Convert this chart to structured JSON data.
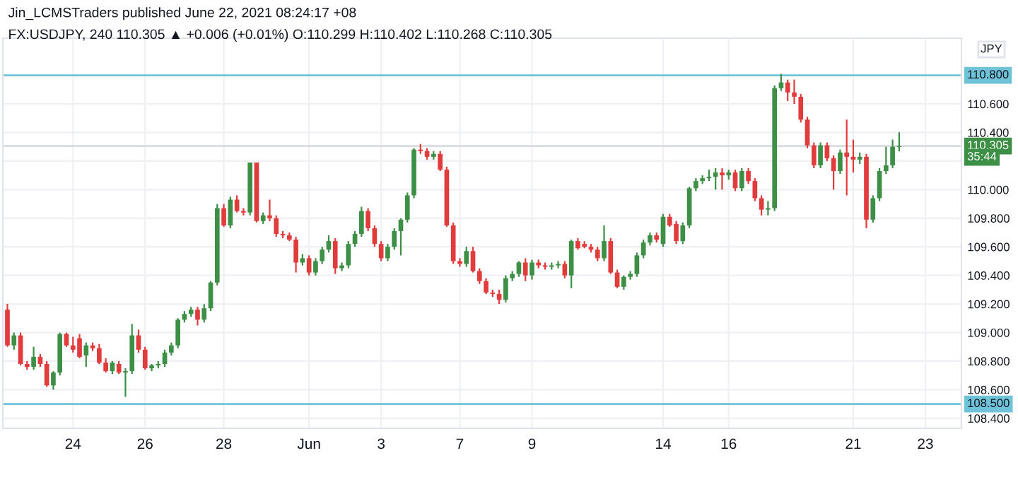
{
  "chart_data": {
    "type": "candlestick",
    "title": "Jin_LCMSTraders published June 22, 2021 08:24:17 +08",
    "subtitle": "FX:USDJPY, 240 110.305 ▲ +0.006 (+0.01%) O:110.299 H:110.402 L:110.268 C:110.305",
    "categories": [
      null,
      null,
      null,
      null,
      null,
      null,
      null,
      null,
      null,
      null,
      "24",
      null,
      null,
      null,
      null,
      null,
      null,
      null,
      null,
      null,
      null,
      "26",
      null,
      null,
      null,
      null,
      null,
      null,
      null,
      null,
      null,
      null,
      null,
      "28",
      null,
      null,
      null,
      null,
      null,
      null,
      null,
      null,
      null,
      null,
      null,
      null,
      "Jun",
      null,
      null,
      null,
      null,
      null,
      null,
      null,
      null,
      null,
      null,
      "3",
      null,
      null,
      null,
      null,
      null,
      null,
      null,
      null,
      null,
      null,
      null,
      "7",
      null,
      null,
      null,
      null,
      null,
      null,
      null,
      null,
      null,
      null,
      "9",
      null,
      null,
      null,
      null,
      null,
      null,
      null,
      null,
      null,
      null,
      null,
      null,
      null,
      null,
      null,
      null,
      null,
      null,
      null,
      "14",
      null,
      null,
      null,
      null,
      null,
      null,
      null,
      null,
      null,
      "16",
      null,
      null,
      null,
      null,
      null,
      null,
      null,
      null,
      null,
      null,
      null,
      null,
      null,
      null,
      null,
      null,
      null,
      null,
      "21",
      null,
      null,
      null,
      null,
      null,
      null,
      null,
      null,
      null,
      null,
      "23",
      null,
      null,
      null,
      null,
      null
    ],
    "ohlc": [
      [
        109.16,
        109.2,
        108.9,
        108.91
      ],
      [
        108.91,
        109.0,
        108.88,
        108.98
      ],
      [
        108.98,
        109.0,
        108.77,
        108.78
      ],
      [
        108.78,
        108.8,
        108.74,
        108.76
      ],
      [
        108.76,
        108.9,
        108.74,
        108.83
      ],
      [
        108.83,
        108.85,
        108.76,
        108.78
      ],
      [
        108.78,
        108.8,
        108.62,
        108.63
      ],
      [
        108.63,
        108.73,
        108.6,
        108.72
      ],
      [
        108.72,
        109.0,
        108.7,
        108.99
      ],
      [
        108.99,
        109.0,
        108.9,
        108.91
      ],
      [
        108.91,
        108.97,
        108.86,
        108.88
      ],
      [
        108.96,
        108.99,
        108.82,
        108.83
      ],
      [
        108.84,
        108.93,
        108.76,
        108.91
      ],
      [
        108.91,
        108.93,
        108.87,
        108.89
      ],
      [
        108.89,
        108.92,
        108.78,
        108.79
      ],
      [
        108.79,
        108.82,
        108.72,
        108.73
      ],
      [
        108.73,
        108.8,
        108.71,
        108.79
      ],
      [
        108.78,
        108.8,
        108.71,
        108.72
      ],
      [
        108.72,
        108.75,
        108.55,
        108.73
      ],
      [
        108.73,
        109.06,
        108.71,
        108.98
      ],
      [
        108.98,
        109.02,
        108.86,
        108.88
      ],
      [
        108.88,
        108.9,
        108.74,
        108.75
      ],
      [
        108.75,
        108.78,
        108.73,
        108.77
      ],
      [
        108.77,
        108.8,
        108.75,
        108.78
      ],
      [
        108.78,
        108.88,
        108.76,
        108.86
      ],
      [
        108.86,
        108.93,
        108.84,
        108.91
      ],
      [
        108.91,
        109.1,
        108.89,
        109.09
      ],
      [
        109.09,
        109.15,
        109.07,
        109.13
      ],
      [
        109.13,
        109.18,
        109.11,
        109.16
      ],
      [
        109.16,
        109.18,
        109.05,
        109.09
      ],
      [
        109.09,
        109.2,
        109.07,
        109.17
      ],
      [
        109.17,
        109.36,
        109.15,
        109.35
      ],
      [
        109.35,
        109.9,
        109.33,
        109.87
      ],
      [
        109.87,
        109.9,
        109.74,
        109.75
      ],
      [
        109.75,
        109.95,
        109.73,
        109.93
      ],
      [
        109.93,
        109.96,
        109.84,
        109.85
      ],
      [
        109.85,
        109.87,
        109.82,
        109.84
      ],
      [
        109.84,
        110.19,
        109.82,
        110.19
      ],
      [
        110.19,
        110.19,
        109.77,
        109.78
      ],
      [
        109.78,
        109.84,
        109.76,
        109.82
      ],
      [
        109.82,
        109.93,
        109.78,
        109.8
      ],
      [
        109.8,
        109.82,
        109.67,
        109.69
      ],
      [
        109.69,
        109.71,
        109.66,
        109.68
      ],
      [
        109.68,
        109.7,
        109.64,
        109.65
      ],
      [
        109.65,
        109.67,
        109.42,
        109.49
      ],
      [
        109.49,
        109.55,
        109.47,
        109.52
      ],
      [
        109.52,
        109.54,
        109.4,
        109.42
      ],
      [
        109.42,
        109.52,
        109.4,
        109.5
      ],
      [
        109.5,
        109.6,
        109.48,
        109.58
      ],
      [
        109.58,
        109.68,
        109.56,
        109.64
      ],
      [
        109.64,
        109.66,
        109.41,
        109.45
      ],
      [
        109.45,
        109.49,
        109.43,
        109.47
      ],
      [
        109.47,
        109.64,
        109.45,
        109.62
      ],
      [
        109.62,
        109.71,
        109.6,
        109.69
      ],
      [
        109.69,
        109.88,
        109.67,
        109.85
      ],
      [
        109.85,
        109.87,
        109.71,
        109.73
      ],
      [
        109.73,
        109.75,
        109.6,
        109.62
      ],
      [
        109.62,
        109.64,
        109.5,
        109.52
      ],
      [
        109.52,
        109.62,
        109.5,
        109.6
      ],
      [
        109.6,
        109.73,
        109.58,
        109.71
      ],
      [
        109.71,
        109.8,
        109.54,
        109.79
      ],
      [
        109.79,
        109.98,
        109.77,
        109.96
      ],
      [
        109.96,
        110.29,
        109.94,
        110.28
      ],
      [
        110.28,
        110.32,
        110.25,
        110.27
      ],
      [
        110.27,
        110.29,
        110.21,
        110.23
      ],
      [
        110.23,
        110.27,
        110.21,
        110.25
      ],
      [
        110.25,
        110.27,
        110.13,
        110.14
      ],
      [
        110.14,
        110.16,
        109.74,
        109.75
      ],
      [
        109.75,
        109.77,
        109.48,
        109.5
      ],
      [
        109.5,
        109.52,
        109.46,
        109.48
      ],
      [
        109.48,
        109.6,
        109.46,
        109.57
      ],
      [
        109.57,
        109.6,
        109.42,
        109.43
      ],
      [
        109.43,
        109.45,
        109.34,
        109.36
      ],
      [
        109.36,
        109.38,
        109.27,
        109.28
      ],
      [
        109.28,
        109.3,
        109.25,
        109.27
      ],
      [
        109.27,
        109.3,
        109.2,
        109.23
      ],
      [
        109.23,
        109.4,
        109.21,
        109.38
      ],
      [
        109.38,
        109.43,
        109.36,
        109.41
      ],
      [
        109.41,
        109.5,
        109.39,
        109.49
      ],
      [
        109.49,
        109.52,
        109.36,
        109.4
      ],
      [
        109.4,
        109.51,
        109.37,
        109.49
      ],
      [
        109.49,
        109.51,
        109.45,
        109.47
      ],
      [
        109.47,
        109.49,
        109.44,
        109.46
      ],
      [
        109.46,
        109.49,
        109.44,
        109.47
      ],
      [
        109.47,
        109.5,
        109.45,
        109.48
      ],
      [
        109.48,
        109.5,
        109.38,
        109.4
      ],
      [
        109.4,
        109.65,
        109.31,
        109.64
      ],
      [
        109.64,
        109.66,
        109.58,
        109.59
      ],
      [
        109.62,
        109.64,
        109.59,
        109.6
      ],
      [
        109.6,
        109.62,
        109.56,
        109.58
      ],
      [
        109.58,
        109.6,
        109.5,
        109.52
      ],
      [
        109.52,
        109.75,
        109.5,
        109.64
      ],
      [
        109.64,
        109.66,
        109.41,
        109.42
      ],
      [
        109.42,
        109.44,
        109.31,
        109.32
      ],
      [
        109.32,
        109.4,
        109.3,
        109.39
      ],
      [
        109.39,
        109.43,
        109.37,
        109.41
      ],
      [
        109.41,
        109.56,
        109.39,
        109.54
      ],
      [
        109.54,
        109.65,
        109.52,
        109.63
      ],
      [
        109.63,
        109.7,
        109.61,
        109.68
      ],
      [
        109.68,
        109.7,
        109.63,
        109.65
      ],
      [
        109.62,
        109.83,
        109.6,
        109.81
      ],
      [
        109.81,
        109.83,
        109.74,
        109.75
      ],
      [
        109.76,
        109.78,
        109.62,
        109.64
      ],
      [
        109.64,
        109.77,
        109.62,
        109.75
      ],
      [
        109.75,
        110.02,
        109.73,
        110.01
      ],
      [
        110.01,
        110.08,
        109.99,
        110.06
      ],
      [
        110.06,
        110.1,
        110.04,
        110.08
      ],
      [
        110.08,
        110.14,
        110.06,
        110.09
      ],
      [
        110.09,
        110.15,
        110.0,
        110.12
      ],
      [
        110.12,
        110.15,
        110.0,
        110.1
      ],
      [
        110.1,
        110.14,
        110.07,
        110.12
      ],
      [
        110.12,
        110.14,
        109.99,
        110.01
      ],
      [
        110.01,
        110.15,
        109.99,
        110.13
      ],
      [
        110.13,
        110.15,
        110.04,
        110.06
      ],
      [
        110.06,
        110.08,
        109.92,
        109.94
      ],
      [
        109.94,
        109.96,
        109.82,
        109.86
      ],
      [
        109.86,
        109.92,
        109.82,
        109.87
      ],
      [
        109.87,
        110.73,
        109.85,
        110.71
      ],
      [
        110.71,
        110.81,
        110.69,
        110.75
      ],
      [
        110.75,
        110.77,
        110.62,
        110.68
      ],
      [
        110.68,
        110.77,
        110.6,
        110.65
      ],
      [
        110.65,
        110.67,
        110.47,
        110.49
      ],
      [
        110.49,
        110.51,
        110.29,
        110.31
      ],
      [
        110.31,
        110.33,
        110.15,
        110.17
      ],
      [
        110.17,
        110.33,
        110.15,
        110.31
      ],
      [
        110.31,
        110.33,
        110.2,
        110.22
      ],
      [
        110.22,
        110.24,
        110.0,
        110.13
      ],
      [
        110.13,
        110.28,
        110.11,
        110.26
      ],
      [
        110.26,
        110.49,
        109.96,
        110.23
      ],
      [
        110.23,
        110.35,
        110.12,
        110.21
      ],
      [
        110.21,
        110.26,
        110.18,
        110.23
      ],
      [
        110.23,
        110.25,
        109.73,
        109.79
      ],
      [
        109.79,
        109.96,
        109.77,
        109.94
      ],
      [
        109.94,
        110.15,
        109.92,
        110.13
      ],
      [
        110.13,
        110.3,
        110.11,
        110.17
      ],
      [
        110.17,
        110.35,
        110.15,
        110.3
      ],
      [
        110.299,
        110.402,
        110.268,
        110.305
      ],
      null,
      null,
      null,
      null,
      null,
      null,
      null,
      null,
      null
    ],
    "colors": [
      "#e23b3b",
      "#3d8f45",
      "#e23b3b",
      "#e23b3b",
      "#3d8f45",
      "#e23b3b",
      "#e23b3b",
      "#3d8f45",
      "#3d8f45",
      "#e23b3b",
      "#e23b3b",
      "#e23b3b",
      "#3d8f45",
      "#e23b3b",
      "#e23b3b",
      "#e23b3b",
      "#3d8f45",
      "#e23b3b",
      "#3d8f45",
      "#3d8f45",
      "#e23b3b",
      "#e23b3b",
      "#3d8f45",
      "#3d8f45",
      "#3d8f45",
      "#3d8f45",
      "#3d8f45",
      "#3d8f45",
      "#3d8f45",
      "#e23b3b",
      "#3d8f45",
      "#3d8f45",
      "#3d8f45",
      "#e23b3b",
      "#3d8f45",
      "#e23b3b",
      "#e23b3b",
      "#3d8f45",
      "#e23b3b",
      "#3d8f45",
      "#e23b3b",
      "#e23b3b",
      "#e23b3b",
      "#e23b3b",
      "#e23b3b",
      "#3d8f45",
      "#e23b3b",
      "#3d8f45",
      "#3d8f45",
      "#3d8f45",
      "#e23b3b",
      "#3d8f45",
      "#3d8f45",
      "#3d8f45",
      "#3d8f45",
      "#e23b3b",
      "#e23b3b",
      "#e23b3b",
      "#3d8f45",
      "#3d8f45",
      "#3d8f45",
      "#3d8f45",
      "#3d8f45",
      "#e23b3b",
      "#e23b3b",
      "#3d8f45",
      "#e23b3b",
      "#e23b3b",
      "#e23b3b",
      "#e23b3b",
      "#3d8f45",
      "#e23b3b",
      "#e23b3b",
      "#e23b3b",
      "#e23b3b",
      "#e23b3b",
      "#3d8f45",
      "#3d8f45",
      "#3d8f45",
      "#e23b3b",
      "#3d8f45",
      "#e23b3b",
      "#e23b3b",
      "#3d8f45",
      "#3d8f45",
      "#e23b3b",
      "#3d8f45",
      "#e23b3b",
      "#e23b3b",
      "#e23b3b",
      "#e23b3b",
      "#3d8f45",
      "#e23b3b",
      "#e23b3b",
      "#3d8f45",
      "#3d8f45",
      "#3d8f45",
      "#3d8f45",
      "#3d8f45",
      "#e23b3b",
      "#3d8f45",
      "#e23b3b",
      "#e23b3b",
      "#3d8f45",
      "#3d8f45",
      "#3d8f45",
      "#3d8f45",
      "#3d8f45",
      "#3d8f45",
      "#e23b3b",
      "#3d8f45",
      "#e23b3b",
      "#3d8f45",
      "#e23b3b",
      "#e23b3b",
      "#e23b3b",
      "#3d8f45",
      "#3d8f45",
      "#3d8f45",
      "#e23b3b",
      "#e23b3b",
      "#e23b3b",
      "#e23b3b",
      "#e23b3b",
      "#3d8f45",
      "#e23b3b",
      "#e23b3b",
      "#3d8f45",
      "#e23b3b",
      "#e23b3b",
      "#3d8f45",
      "#e23b3b",
      "#3d8f45",
      "#3d8f45",
      "#3d8f45",
      "#3d8f45",
      "#3d8f45",
      null,
      null,
      null,
      null,
      null,
      null,
      null,
      null,
      null
    ],
    "ylim": [
      108.33,
      111.06
    ],
    "yticks": [
      {
        "value": 108.4,
        "label": "108.400"
      },
      {
        "value": 108.6,
        "label": "108.600"
      },
      {
        "value": 108.8,
        "label": "108.800"
      },
      {
        "value": 109.0,
        "label": "109.000"
      },
      {
        "value": 109.2,
        "label": "109.200"
      },
      {
        "value": 109.4,
        "label": "109.400"
      },
      {
        "value": 109.6,
        "label": "109.600"
      },
      {
        "value": 109.8,
        "label": "109.800"
      },
      {
        "value": 110.0,
        "label": "110.000"
      },
      {
        "value": 110.2,
        "label": null
      },
      {
        "value": 110.4,
        "label": "110.400"
      },
      {
        "value": 110.6,
        "label": "110.600"
      }
    ],
    "ref_lines": [
      {
        "axis": "y",
        "value": 110.8,
        "label": "110.800",
        "color": "#6fc3d8"
      },
      {
        "axis": "y",
        "value": 108.5,
        "label": "108.500",
        "color": "#6fc3d8"
      },
      {
        "axis": "y",
        "value": 110.305,
        "label": "110.305",
        "color": "#d0d3da"
      }
    ],
    "annotations": [
      "35:44",
      "JPY"
    ],
    "grid": true
  }
}
